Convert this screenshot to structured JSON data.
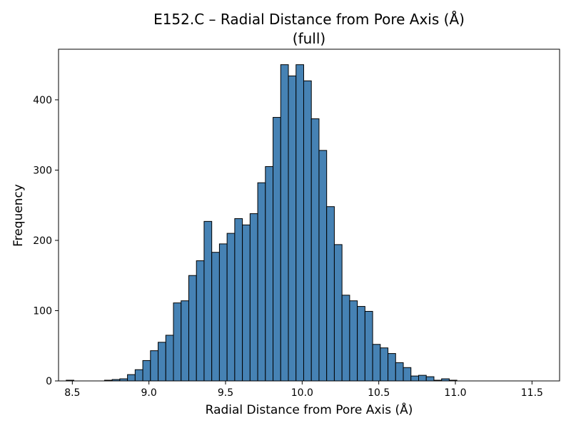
{
  "chart_data": {
    "type": "bar",
    "title": "E152.C – Radial Distance from Pore Axis (Å)",
    "subtitle": "(full)",
    "xlabel": "Radial Distance from Pore Axis (Å)",
    "ylabel": "Frequency",
    "xlim": [
      8.41,
      11.68
    ],
    "ylim": [
      0,
      472
    ],
    "xticks": [
      8.5,
      9.0,
      9.5,
      10.0,
      10.5,
      11.0,
      11.5
    ],
    "xtick_labels": [
      "8.5",
      "9.0",
      "9.5",
      "10.0",
      "10.5",
      "11.0",
      "11.5"
    ],
    "yticks": [
      0,
      100,
      200,
      300,
      400
    ],
    "ytick_labels": [
      "0",
      "100",
      "200",
      "300",
      "400"
    ],
    "bin_start": 8.46,
    "bin_width": 0.05,
    "values": [
      1,
      0,
      0,
      0,
      0,
      1,
      2,
      3,
      9,
      16,
      29,
      43,
      55,
      65,
      111,
      114,
      150,
      171,
      227,
      183,
      195,
      210,
      231,
      222,
      238,
      282,
      305,
      375,
      450,
      434,
      450,
      427,
      373,
      328,
      248,
      194,
      122,
      114,
      106,
      99,
      52,
      47,
      39,
      26,
      19,
      7,
      8,
      6,
      1,
      3,
      1
    ],
    "bar_color": "#4682b4",
    "edge_color": "#000000",
    "grid": false,
    "legend": "none"
  }
}
